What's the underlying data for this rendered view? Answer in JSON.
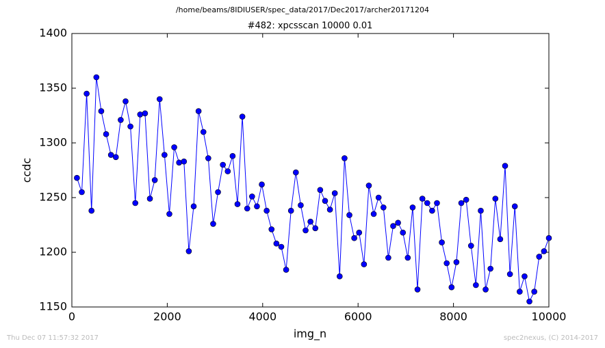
{
  "chart_data": {
    "type": "line",
    "suptitle": "/home/beams/8IDIUSER/spec_data/2017/Dec2017/archer20171204",
    "title": "#482: xpcsscan 10000 0.01",
    "x_label": "img_n",
    "y_label": "ccdc",
    "footer_left": "Thu Dec 07 11:57:32 2017",
    "footer_right": "spec2nexus, (C) 2014-2017",
    "xlim": [
      0,
      10000
    ],
    "ylim": [
      1150,
      1400
    ],
    "xticks": [
      0,
      2000,
      4000,
      6000,
      8000,
      10000
    ],
    "yticks": [
      1150,
      1200,
      1250,
      1300,
      1350,
      1400
    ],
    "grid": false,
    "x": [
      106,
      208,
      310,
      412,
      514,
      616,
      718,
      820,
      922,
      1024,
      1126,
      1228,
      1330,
      1432,
      1534,
      1636,
      1738,
      1840,
      1942,
      2044,
      2146,
      2248,
      2350,
      2452,
      2554,
      2656,
      2758,
      2860,
      2962,
      3064,
      3166,
      3268,
      3370,
      3472,
      3574,
      3676,
      3778,
      3880,
      3982,
      4084,
      4186,
      4288,
      4390,
      4492,
      4594,
      4696,
      4798,
      4900,
      5002,
      5104,
      5206,
      5308,
      5410,
      5512,
      5614,
      5716,
      5818,
      5920,
      6022,
      6124,
      6226,
      6328,
      6430,
      6532,
      6634,
      6736,
      6838,
      6940,
      7042,
      7144,
      7246,
      7348,
      7450,
      7552,
      7654,
      7756,
      7858,
      7960,
      8062,
      8164,
      8266,
      8368,
      8470,
      8572,
      8674,
      8776,
      8878,
      8980,
      9082,
      9184,
      9286,
      9388,
      9490,
      9592,
      9694,
      9796,
      9898,
      10000
    ],
    "series": [
      {
        "color": "#0000ff",
        "values": [
          1268,
          1255,
          1345,
          1238,
          1360,
          1329,
          1308,
          1289,
          1287,
          1321,
          1338,
          1315,
          1245,
          1326,
          1327,
          1249,
          1266,
          1340,
          1289,
          1235,
          1296,
          1282,
          1283,
          1201,
          1242,
          1329,
          1310,
          1286,
          1226,
          1255,
          1280,
          1274,
          1288,
          1244,
          1324,
          1240,
          1251,
          1242,
          1262,
          1238,
          1221,
          1208,
          1205,
          1184,
          1238,
          1273,
          1243,
          1220,
          1228,
          1222,
          1257,
          1247,
          1239,
          1254,
          1178,
          1286,
          1234,
          1213,
          1218,
          1189,
          1261,
          1235,
          1250,
          1241,
          1195,
          1224,
          1227,
          1218,
          1195,
          1241,
          1166,
          1249,
          1245,
          1238,
          1245,
          1209,
          1190,
          1168,
          1191,
          1245,
          1248,
          1206,
          1170,
          1238,
          1166,
          1185,
          1249,
          1212,
          1279,
          1180,
          1242,
          1164,
          1178,
          1155,
          1164,
          1196,
          1201,
          1213
        ]
      }
    ]
  }
}
